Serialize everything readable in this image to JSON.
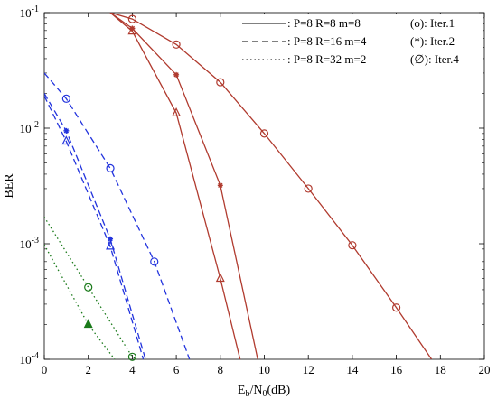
{
  "chart_data": {
    "type": "line",
    "title": "",
    "xlabel": "E",
    "xlabel_sub": "b",
    "xlabel_mid": "/N",
    "xlabel_sub2": "0",
    "xlabel_unit": "(dB)",
    "ylabel": "BER",
    "xlim": [
      0,
      20
    ],
    "ylim": [
      0.0001,
      0.1
    ],
    "yscale": "log",
    "grid": false,
    "x_ticks": [
      0,
      2,
      4,
      6,
      8,
      10,
      12,
      14,
      16,
      18,
      20
    ],
    "x_tick_labels": [
      "0",
      "2",
      "4",
      "6",
      "8",
      "10",
      "12",
      "14",
      "16",
      "18",
      "20"
    ],
    "y_ticks": [
      0.1,
      0.01,
      0.001,
      0.0001
    ],
    "y_tick_base": "10",
    "y_tick_exps": [
      "-1",
      "-2",
      "-3",
      "-4"
    ],
    "legend_styles": [
      {
        "label": ": P=8 R=8 m=8",
        "dash": "solid"
      },
      {
        "label": ": P=8 R=16 m=4",
        "dash": "dashed"
      },
      {
        "label": ": P=8 R=32 m=2",
        "dash": "dotted"
      }
    ],
    "legend_markers": [
      {
        "label": "(o): Iter.1"
      },
      {
        "label": "(*): Iter.2"
      },
      {
        "label": "(∅): Iter.4"
      }
    ],
    "series": [
      {
        "color": "#b03a2e",
        "dash": "solid",
        "marker": "circle",
        "x": [
          3,
          4,
          6,
          8,
          10,
          12,
          14,
          16,
          17.6
        ],
        "y": [
          0.1,
          0.088,
          0.053,
          0.025,
          0.009,
          0.003,
          0.00097,
          0.00028,
          0.0001
        ],
        "marker_x": [
          4,
          6,
          8,
          10,
          12,
          14,
          16
        ]
      },
      {
        "color": "#b03a2e",
        "dash": "solid",
        "marker": "star",
        "x": [
          3,
          4,
          6,
          8,
          9.7
        ],
        "y": [
          0.1,
          0.073,
          0.029,
          0.0032,
          0.0001
        ],
        "marker_x": [
          4,
          6,
          8
        ]
      },
      {
        "color": "#b03a2e",
        "dash": "solid",
        "marker": "triangle",
        "x": [
          3,
          4,
          6,
          8,
          8.9
        ],
        "y": [
          0.1,
          0.069,
          0.0135,
          0.0005,
          0.0001
        ],
        "marker_x": [
          4,
          6,
          8
        ]
      },
      {
        "color": "#2233dd",
        "dash": "dashed",
        "marker": "circle",
        "x": [
          0,
          1,
          3,
          5,
          6.6
        ],
        "y": [
          0.03,
          0.018,
          0.0045,
          0.0007,
          0.0001
        ],
        "marker_x": [
          1,
          3,
          5
        ]
      },
      {
        "color": "#2233dd",
        "dash": "dashed",
        "marker": "star",
        "x": [
          0,
          1,
          3,
          4.6
        ],
        "y": [
          0.02,
          0.0095,
          0.0011,
          0.0001
        ],
        "marker_x": [
          1,
          3
        ]
      },
      {
        "color": "#2233dd",
        "dash": "dashed",
        "marker": "triangle",
        "x": [
          0,
          1,
          3,
          4.5
        ],
        "y": [
          0.019,
          0.0077,
          0.00095,
          0.0001
        ],
        "marker_x": [
          1,
          3
        ]
      },
      {
        "color": "#1a7a1a",
        "dash": "dotted",
        "marker": "circle",
        "x": [
          0,
          2,
          4,
          4.2
        ],
        "y": [
          0.0017,
          0.00042,
          0.000105,
          0.0001
        ],
        "marker_x": [
          2,
          4
        ]
      },
      {
        "color": "#1a7a1a",
        "dash": "dotted",
        "marker": "triangle-filled",
        "x": [
          0,
          2,
          3.2
        ],
        "y": [
          0.00098,
          0.0002,
          0.0001
        ],
        "marker_x": [
          2
        ]
      }
    ]
  }
}
